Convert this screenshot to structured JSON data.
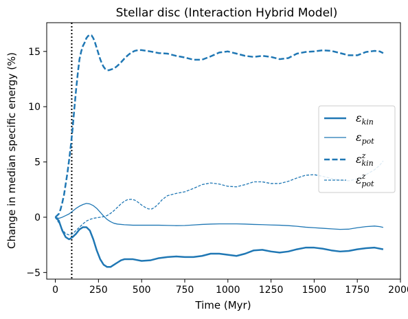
{
  "chart_data": {
    "type": "line",
    "title": "Stellar disc (Interaction Hybrid Model)",
    "xlabel": "Time (Myr)",
    "ylabel": "Change in median specific energy (%)",
    "xlim": [
      -50,
      2000
    ],
    "ylim": [
      -5.6,
      17.6
    ],
    "xticks": [
      0,
      250,
      500,
      750,
      1000,
      1250,
      1500,
      1750,
      2000
    ],
    "yticks": [
      -5,
      0,
      5,
      10,
      15
    ],
    "grid": false,
    "legend_position": "center-right",
    "vline": {
      "x": 95,
      "style": "dotted",
      "color": "#000000"
    },
    "color": "#1f77b4",
    "series": [
      {
        "name": "ε_kin",
        "legend_symbol": "ε",
        "legend_sub": "kin",
        "legend_sup": "",
        "linestyle": "solid",
        "linewidth": "thick",
        "points": [
          [
            0,
            0
          ],
          [
            20,
            -0.3
          ],
          [
            40,
            -1.2
          ],
          [
            60,
            -1.8
          ],
          [
            80,
            -2.0
          ],
          [
            100,
            -1.8
          ],
          [
            120,
            -1.5
          ],
          [
            140,
            -1.1
          ],
          [
            160,
            -0.9
          ],
          [
            180,
            -0.9
          ],
          [
            200,
            -1.2
          ],
          [
            220,
            -2.0
          ],
          [
            240,
            -3.0
          ],
          [
            260,
            -3.8
          ],
          [
            280,
            -4.3
          ],
          [
            300,
            -4.5
          ],
          [
            320,
            -4.5
          ],
          [
            340,
            -4.3
          ],
          [
            360,
            -4.1
          ],
          [
            380,
            -3.9
          ],
          [
            400,
            -3.8
          ],
          [
            450,
            -3.8
          ],
          [
            500,
            -3.95
          ],
          [
            550,
            -3.9
          ],
          [
            600,
            -3.7
          ],
          [
            650,
            -3.6
          ],
          [
            700,
            -3.55
          ],
          [
            750,
            -3.6
          ],
          [
            800,
            -3.6
          ],
          [
            850,
            -3.5
          ],
          [
            900,
            -3.3
          ],
          [
            950,
            -3.3
          ],
          [
            1000,
            -3.4
          ],
          [
            1050,
            -3.5
          ],
          [
            1100,
            -3.3
          ],
          [
            1150,
            -3.0
          ],
          [
            1200,
            -2.95
          ],
          [
            1250,
            -3.1
          ],
          [
            1300,
            -3.2
          ],
          [
            1350,
            -3.1
          ],
          [
            1400,
            -2.9
          ],
          [
            1450,
            -2.75
          ],
          [
            1500,
            -2.75
          ],
          [
            1550,
            -2.85
          ],
          [
            1600,
            -3.0
          ],
          [
            1650,
            -3.1
          ],
          [
            1700,
            -3.05
          ],
          [
            1750,
            -2.9
          ],
          [
            1800,
            -2.8
          ],
          [
            1850,
            -2.75
          ],
          [
            1900,
            -2.9
          ]
        ]
      },
      {
        "name": "ε_pot",
        "legend_symbol": "ε",
        "legend_sub": "pot",
        "legend_sup": "",
        "linestyle": "solid",
        "linewidth": "thin",
        "points": [
          [
            0,
            0
          ],
          [
            20,
            -0.1
          ],
          [
            40,
            0.0
          ],
          [
            60,
            0.15
          ],
          [
            80,
            0.3
          ],
          [
            100,
            0.55
          ],
          [
            120,
            0.8
          ],
          [
            140,
            1.0
          ],
          [
            160,
            1.15
          ],
          [
            180,
            1.25
          ],
          [
            200,
            1.2
          ],
          [
            220,
            1.05
          ],
          [
            240,
            0.8
          ],
          [
            260,
            0.45
          ],
          [
            280,
            0.1
          ],
          [
            300,
            -0.2
          ],
          [
            320,
            -0.4
          ],
          [
            340,
            -0.55
          ],
          [
            360,
            -0.62
          ],
          [
            400,
            -0.68
          ],
          [
            450,
            -0.72
          ],
          [
            500,
            -0.72
          ],
          [
            550,
            -0.72
          ],
          [
            600,
            -0.72
          ],
          [
            650,
            -0.74
          ],
          [
            700,
            -0.76
          ],
          [
            750,
            -0.75
          ],
          [
            800,
            -0.7
          ],
          [
            850,
            -0.65
          ],
          [
            900,
            -0.62
          ],
          [
            950,
            -0.6
          ],
          [
            1000,
            -0.6
          ],
          [
            1050,
            -0.6
          ],
          [
            1100,
            -0.62
          ],
          [
            1150,
            -0.65
          ],
          [
            1200,
            -0.67
          ],
          [
            1250,
            -0.7
          ],
          [
            1300,
            -0.72
          ],
          [
            1350,
            -0.76
          ],
          [
            1400,
            -0.82
          ],
          [
            1450,
            -0.9
          ],
          [
            1500,
            -0.95
          ],
          [
            1550,
            -1.0
          ],
          [
            1600,
            -1.05
          ],
          [
            1650,
            -1.1
          ],
          [
            1700,
            -1.08
          ],
          [
            1750,
            -0.95
          ],
          [
            1800,
            -0.85
          ],
          [
            1850,
            -0.8
          ],
          [
            1880,
            -0.85
          ],
          [
            1900,
            -0.92
          ]
        ]
      },
      {
        "name": "ε^z_kin",
        "legend_symbol": "ε",
        "legend_sub": "kin",
        "legend_sup": "z",
        "linestyle": "dashed",
        "linewidth": "thick",
        "points": [
          [
            0,
            0
          ],
          [
            20,
            0.3
          ],
          [
            30,
            0.7
          ],
          [
            40,
            1.3
          ],
          [
            50,
            2.0
          ],
          [
            60,
            3.0
          ],
          [
            70,
            4.0
          ],
          [
            80,
            5.2
          ],
          [
            90,
            6.5
          ],
          [
            100,
            8.0
          ],
          [
            110,
            9.8
          ],
          [
            120,
            11.5
          ],
          [
            130,
            13.0
          ],
          [
            140,
            14.3
          ],
          [
            150,
            15.0
          ],
          [
            160,
            15.5
          ],
          [
            170,
            15.8
          ],
          [
            180,
            16.2
          ],
          [
            190,
            16.4
          ],
          [
            200,
            16.5
          ],
          [
            210,
            16.45
          ],
          [
            220,
            16.2
          ],
          [
            230,
            15.8
          ],
          [
            240,
            15.3
          ],
          [
            250,
            14.8
          ],
          [
            260,
            14.3
          ],
          [
            270,
            13.9
          ],
          [
            280,
            13.6
          ],
          [
            290,
            13.4
          ],
          [
            300,
            13.3
          ],
          [
            310,
            13.3
          ],
          [
            320,
            13.35
          ],
          [
            340,
            13.45
          ],
          [
            360,
            13.7
          ],
          [
            380,
            14.0
          ],
          [
            400,
            14.35
          ],
          [
            420,
            14.65
          ],
          [
            440,
            14.9
          ],
          [
            460,
            15.05
          ],
          [
            480,
            15.12
          ],
          [
            500,
            15.12
          ],
          [
            550,
            15.0
          ],
          [
            600,
            14.85
          ],
          [
            650,
            14.8
          ],
          [
            700,
            14.6
          ],
          [
            750,
            14.45
          ],
          [
            800,
            14.25
          ],
          [
            850,
            14.25
          ],
          [
            900,
            14.55
          ],
          [
            950,
            14.9
          ],
          [
            1000,
            15.0
          ],
          [
            1050,
            14.8
          ],
          [
            1100,
            14.6
          ],
          [
            1150,
            14.5
          ],
          [
            1200,
            14.6
          ],
          [
            1250,
            14.5
          ],
          [
            1300,
            14.3
          ],
          [
            1350,
            14.4
          ],
          [
            1400,
            14.8
          ],
          [
            1450,
            14.95
          ],
          [
            1500,
            15.0
          ],
          [
            1550,
            15.1
          ],
          [
            1600,
            15.05
          ],
          [
            1650,
            14.85
          ],
          [
            1700,
            14.65
          ],
          [
            1750,
            14.65
          ],
          [
            1800,
            14.95
          ],
          [
            1850,
            15.05
          ],
          [
            1880,
            15.0
          ],
          [
            1900,
            14.85
          ]
        ]
      },
      {
        "name": "ε^z_pot",
        "legend_symbol": "ε",
        "legend_sub": "pot",
        "legend_sup": "z",
        "linestyle": "dashed",
        "linewidth": "thin",
        "points": [
          [
            0,
            0
          ],
          [
            20,
            -0.5
          ],
          [
            40,
            -1.1
          ],
          [
            60,
            -1.5
          ],
          [
            80,
            -1.6
          ],
          [
            100,
            -1.5
          ],
          [
            120,
            -1.2
          ],
          [
            140,
            -0.9
          ],
          [
            160,
            -0.6
          ],
          [
            180,
            -0.35
          ],
          [
            200,
            -0.2
          ],
          [
            220,
            -0.1
          ],
          [
            240,
            -0.05
          ],
          [
            260,
            0.0
          ],
          [
            280,
            0.05
          ],
          [
            300,
            0.15
          ],
          [
            320,
            0.35
          ],
          [
            340,
            0.6
          ],
          [
            360,
            0.9
          ],
          [
            380,
            1.2
          ],
          [
            400,
            1.45
          ],
          [
            420,
            1.6
          ],
          [
            440,
            1.62
          ],
          [
            460,
            1.55
          ],
          [
            480,
            1.35
          ],
          [
            500,
            1.1
          ],
          [
            520,
            0.9
          ],
          [
            540,
            0.75
          ],
          [
            560,
            0.75
          ],
          [
            580,
            0.95
          ],
          [
            600,
            1.25
          ],
          [
            620,
            1.6
          ],
          [
            650,
            1.95
          ],
          [
            700,
            2.15
          ],
          [
            750,
            2.3
          ],
          [
            800,
            2.6
          ],
          [
            850,
            2.95
          ],
          [
            900,
            3.1
          ],
          [
            950,
            3.0
          ],
          [
            1000,
            2.8
          ],
          [
            1050,
            2.75
          ],
          [
            1100,
            2.95
          ],
          [
            1150,
            3.2
          ],
          [
            1200,
            3.2
          ],
          [
            1250,
            3.05
          ],
          [
            1300,
            3.05
          ],
          [
            1350,
            3.25
          ],
          [
            1400,
            3.55
          ],
          [
            1450,
            3.8
          ],
          [
            1500,
            3.85
          ],
          [
            1550,
            3.7
          ],
          [
            1600,
            3.5
          ],
          [
            1650,
            3.35
          ],
          [
            1700,
            3.3
          ],
          [
            1750,
            3.45
          ],
          [
            1800,
            3.85
          ],
          [
            1850,
            4.3
          ],
          [
            1880,
            4.7
          ],
          [
            1900,
            5.1
          ]
        ]
      }
    ]
  }
}
